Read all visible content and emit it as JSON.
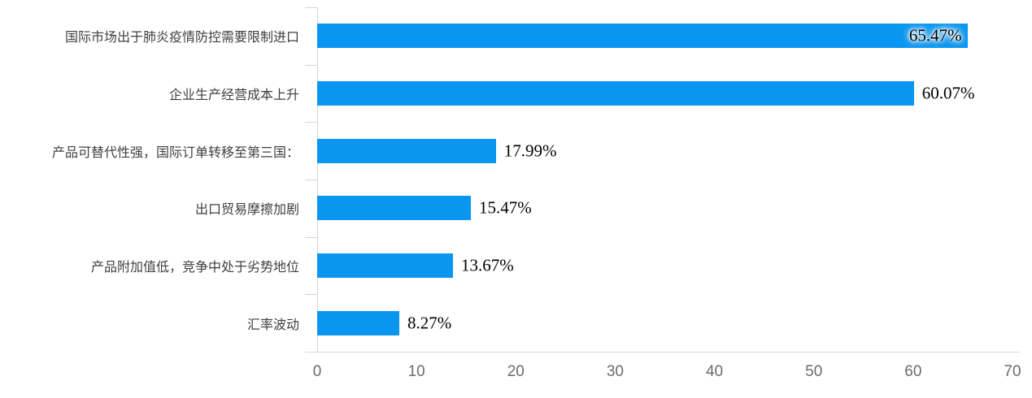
{
  "chart_data": {
    "type": "bar",
    "orientation": "horizontal",
    "title": "",
    "xlabel": "",
    "ylabel": "",
    "categories": [
      "国际市场出于肺炎疫情防控需要限制进口",
      "企业生产经营成本上升",
      "产品可替代性强，国际订单转移至第三国：",
      "出口贸易摩擦加剧",
      "产品附加值低，竞争中处于劣势地位",
      "汇率波动"
    ],
    "values": [
      65.47,
      60.07,
      17.99,
      15.47,
      13.67,
      8.27
    ],
    "value_labels": [
      "65.47%",
      "60.07%",
      "17.99%",
      "15.47%",
      "13.67%",
      "8.27%"
    ],
    "xlim": [
      0,
      70
    ],
    "x_ticks": [
      "0",
      "10",
      "20",
      "30",
      "40",
      "50",
      "60",
      "70"
    ],
    "x_tick_values": [
      0,
      10,
      20,
      30,
      40,
      50,
      60,
      70
    ],
    "grid": false,
    "legend": false,
    "inside_label_index": 0,
    "colors": {
      "bar": "#0996f0",
      "axis_line": "#d2d7dd",
      "tick_label": "#6b6b6b",
      "category_label": "#3f3f3f",
      "value_label": "#000000",
      "background": "#ffffff"
    }
  }
}
